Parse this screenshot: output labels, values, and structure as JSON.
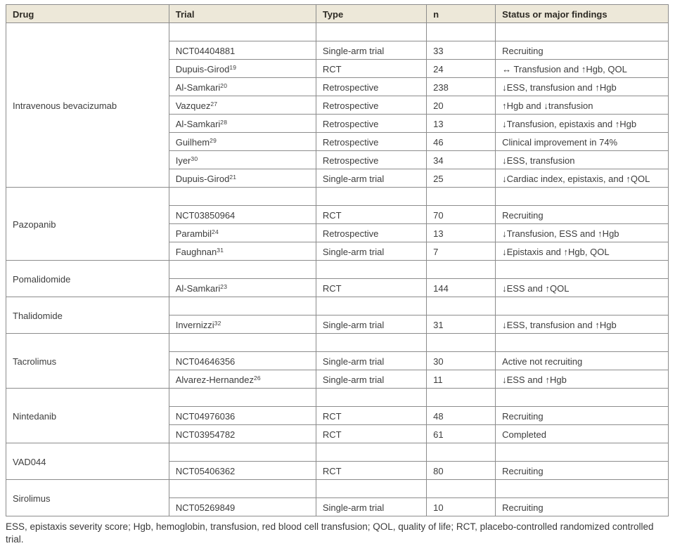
{
  "table": {
    "columns": [
      "Drug",
      "Trial",
      "Type",
      "n",
      "Status or major findings"
    ],
    "groups": [
      {
        "drug": "Intravenous bevacizumab",
        "trials": [
          {
            "trial": "NCT04404881",
            "sup": "",
            "type": "Single-arm trial",
            "n": "33",
            "status": "Recruiting"
          },
          {
            "trial": "Dupuis-Girod",
            "sup": "19",
            "type": "RCT",
            "n": "24",
            "status": "↔ Transfusion and ↑Hgb, QOL"
          },
          {
            "trial": "Al-Samkari",
            "sup": "20",
            "type": "Retrospective",
            "n": "238",
            "status": "↓ESS, transfusion and ↑Hgb"
          },
          {
            "trial": "Vazquez",
            "sup": "27",
            "type": "Retrospective",
            "n": "20",
            "status": "↑Hgb and ↓transfusion"
          },
          {
            "trial": "Al-Samkari",
            "sup": "28",
            "type": "Retrospective",
            "n": "13",
            "status": "↓Transfusion, epistaxis and ↑Hgb"
          },
          {
            "trial": "Guilhem",
            "sup": "29",
            "type": "Retrospective",
            "n": "46",
            "status": "Clinical improvement in 74%"
          },
          {
            "trial": "Iyer",
            "sup": "30",
            "type": "Retrospective",
            "n": "34",
            "status": "↓ESS, transfusion"
          },
          {
            "trial": "Dupuis-Girod",
            "sup": "21",
            "type": "Single-arm trial",
            "n": "25",
            "status": "↓Cardiac index, epistaxis, and ↑QOL"
          }
        ]
      },
      {
        "drug": "Pazopanib",
        "trials": [
          {
            "trial": "NCT03850964",
            "sup": "",
            "type": "RCT",
            "n": "70",
            "status": "Recruiting"
          },
          {
            "trial": "Parambil",
            "sup": "24",
            "type": "Retrospective",
            "n": "13",
            "status": "↓Transfusion, ESS and ↑Hgb"
          },
          {
            "trial": "Faughnan",
            "sup": "31",
            "type": "Single-arm trial",
            "n": "7",
            "status": "↓Epistaxis and ↑Hgb, QOL"
          }
        ]
      },
      {
        "drug": "Pomalidomide",
        "trials": [
          {
            "trial": "Al-Samkari",
            "sup": "23",
            "type": "RCT",
            "n": "144",
            "status": "↓ESS and ↑QOL"
          }
        ]
      },
      {
        "drug": "Thalidomide",
        "trials": [
          {
            "trial": "Invernizzi",
            "sup": "32",
            "type": "Single-arm trial",
            "n": "31",
            "status": "↓ESS, transfusion and ↑Hgb"
          }
        ]
      },
      {
        "drug": "Tacrolimus",
        "trials": [
          {
            "trial": "NCT04646356",
            "sup": "",
            "type": "Single-arm trial",
            "n": "30",
            "status": "Active not recruiting"
          },
          {
            "trial": "Alvarez-Hernandez",
            "sup": "26",
            "type": "Single-arm trial",
            "n": "11",
            "status": "↓ESS and ↑Hgb"
          }
        ]
      },
      {
        "drug": "Nintedanib",
        "trials": [
          {
            "trial": "NCT04976036",
            "sup": "",
            "type": "RCT",
            "n": "48",
            "status": "Recruiting"
          },
          {
            "trial": "NCT03954782",
            "sup": "",
            "type": "RCT",
            "n": "61",
            "status": "Completed"
          }
        ]
      },
      {
        "drug": "VAD044",
        "trials": [
          {
            "trial": "NCT05406362",
            "sup": "",
            "type": "RCT",
            "n": "80",
            "status": "Recruiting"
          }
        ]
      },
      {
        "drug": "Sirolimus",
        "trials": [
          {
            "trial": "NCT05269849",
            "sup": "",
            "type": "Single-arm trial",
            "n": "10",
            "status": "Recruiting"
          }
        ]
      }
    ]
  },
  "footnote": "ESS, epistaxis severity score; Hgb, hemoglobin, transfusion, red blood cell transfusion; QOL, quality of life; RCT, placebo-controlled randomized controlled trial.",
  "colors": {
    "header_bg": "#ede8d9",
    "border": "#8c8c8c",
    "text": "#3d3d3d"
  }
}
